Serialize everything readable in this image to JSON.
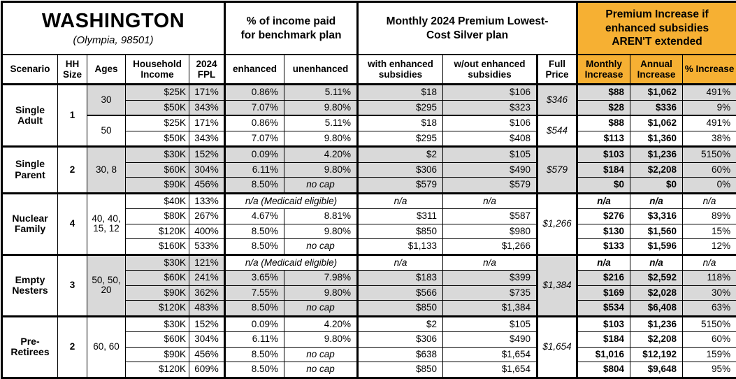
{
  "title": {
    "state": "WASHINGTON",
    "city": "(Olympia, 98501)"
  },
  "colors": {
    "highlight": "#F6B033",
    "shade": "#D9D9D9"
  },
  "column_groups": {
    "benchmark": "% of income paid for benchmark plan",
    "premium": "Monthly 2024 Premium Lowest-Cost Silver plan",
    "increase": "Premium Increase if enhanced subsidies AREN'T extended"
  },
  "headers": {
    "scenario": "Scenario",
    "hh_size": "HH Size",
    "ages": "Ages",
    "income": "Household Income",
    "fpl": "2024 FPL",
    "enhanced": "enhanced",
    "unenhanced": "unenhanced",
    "with_subsidies": "with enhanced subsidies",
    "without_subsidies": "w/out enhanced subsidies",
    "full_price": "Full Price",
    "monthly_increase": "Monthly Increase",
    "annual_increase": "Annual Increase",
    "pct_increase": "% Increase"
  },
  "sections": [
    {
      "scenario": "Single Adult",
      "hh_size": "1",
      "age_groups": [
        {
          "ages": "30",
          "shaded": true,
          "full_price": "$346",
          "rows": [
            {
              "income": "$25K",
              "fpl": "171%",
              "enhanced": "0.86%",
              "unenhanced": "5.11%",
              "with_sub": "$18",
              "without_sub": "$106",
              "monthly": "$88",
              "annual": "$1,062",
              "pct": "491%"
            },
            {
              "income": "$50K",
              "fpl": "343%",
              "enhanced": "7.07%",
              "unenhanced": "9.80%",
              "with_sub": "$295",
              "without_sub": "$323",
              "monthly": "$28",
              "annual": "$336",
              "pct": "9%"
            }
          ]
        },
        {
          "ages": "50",
          "shaded": false,
          "full_price": "$544",
          "rows": [
            {
              "income": "$25K",
              "fpl": "171%",
              "enhanced": "0.86%",
              "unenhanced": "5.11%",
              "with_sub": "$18",
              "without_sub": "$106",
              "monthly": "$88",
              "annual": "$1,062",
              "pct": "491%"
            },
            {
              "income": "$50K",
              "fpl": "343%",
              "enhanced": "7.07%",
              "unenhanced": "9.80%",
              "with_sub": "$295",
              "without_sub": "$408",
              "monthly": "$113",
              "annual": "$1,360",
              "pct": "38%"
            }
          ]
        }
      ]
    },
    {
      "scenario": "Single Parent",
      "hh_size": "2",
      "age_groups": [
        {
          "ages": "30, 8",
          "shaded": true,
          "full_price": "$579",
          "rows": [
            {
              "income": "$30K",
              "fpl": "152%",
              "enhanced": "0.09%",
              "unenhanced": "4.20%",
              "with_sub": "$2",
              "without_sub": "$105",
              "monthly": "$103",
              "annual": "$1,236",
              "pct": "5150%"
            },
            {
              "income": "$60K",
              "fpl": "304%",
              "enhanced": "6.11%",
              "unenhanced": "9.80%",
              "with_sub": "$306",
              "without_sub": "$490",
              "monthly": "$184",
              "annual": "$2,208",
              "pct": "60%"
            },
            {
              "income": "$90K",
              "fpl": "456%",
              "enhanced": "8.50%",
              "unenhanced": "no cap",
              "with_sub": "$579",
              "without_sub": "$579",
              "monthly": "$0",
              "annual": "$0",
              "pct": "0%"
            }
          ]
        }
      ]
    },
    {
      "scenario": "Nuclear Family",
      "hh_size": "4",
      "age_groups": [
        {
          "ages": "40, 40, 15, 12",
          "shaded": false,
          "full_price": "$1,266",
          "rows": [
            {
              "income": "$40K",
              "fpl": "133%",
              "medicaid": "n/a (Medicaid eligible)",
              "with_sub": "n/a",
              "without_sub": "n/a",
              "monthly": "n/a",
              "annual": "n/a",
              "pct": "n/a"
            },
            {
              "income": "$80K",
              "fpl": "267%",
              "enhanced": "4.67%",
              "unenhanced": "8.81%",
              "with_sub": "$311",
              "without_sub": "$587",
              "monthly": "$276",
              "annual": "$3,316",
              "pct": "89%"
            },
            {
              "income": "$120K",
              "fpl": "400%",
              "enhanced": "8.50%",
              "unenhanced": "9.80%",
              "with_sub": "$850",
              "without_sub": "$980",
              "monthly": "$130",
              "annual": "$1,560",
              "pct": "15%"
            },
            {
              "income": "$160K",
              "fpl": "533%",
              "enhanced": "8.50%",
              "unenhanced": "no cap",
              "with_sub": "$1,133",
              "without_sub": "$1,266",
              "monthly": "$133",
              "annual": "$1,596",
              "pct": "12%"
            }
          ]
        }
      ]
    },
    {
      "scenario": "Empty Nesters",
      "hh_size": "3",
      "age_groups": [
        {
          "ages": "50, 50, 20",
          "shaded": true,
          "full_price": "$1,384",
          "rows": [
            {
              "income": "$30K",
              "fpl": "121%",
              "medicaid": "n/a (Medicaid eligible)",
              "with_sub": "n/a",
              "without_sub": "n/a",
              "monthly": "n/a",
              "annual": "n/a",
              "pct": "n/a"
            },
            {
              "income": "$60K",
              "fpl": "241%",
              "enhanced": "3.65%",
              "unenhanced": "7.98%",
              "with_sub": "$183",
              "without_sub": "$399",
              "monthly": "$216",
              "annual": "$2,592",
              "pct": "118%"
            },
            {
              "income": "$90K",
              "fpl": "362%",
              "enhanced": "7.55%",
              "unenhanced": "9.80%",
              "with_sub": "$566",
              "without_sub": "$735",
              "monthly": "$169",
              "annual": "$2,028",
              "pct": "30%"
            },
            {
              "income": "$120K",
              "fpl": "483%",
              "enhanced": "8.50%",
              "unenhanced": "no cap",
              "with_sub": "$850",
              "without_sub": "$1,384",
              "monthly": "$534",
              "annual": "$6,408",
              "pct": "63%"
            }
          ]
        }
      ]
    },
    {
      "scenario": "Pre-Retirees",
      "hh_size": "2",
      "age_groups": [
        {
          "ages": "60, 60",
          "shaded": false,
          "full_price": "$1,654",
          "rows": [
            {
              "income": "$30K",
              "fpl": "152%",
              "enhanced": "0.09%",
              "unenhanced": "4.20%",
              "with_sub": "$2",
              "without_sub": "$105",
              "monthly": "$103",
              "annual": "$1,236",
              "pct": "5150%"
            },
            {
              "income": "$60K",
              "fpl": "304%",
              "enhanced": "6.11%",
              "unenhanced": "9.80%",
              "with_sub": "$306",
              "without_sub": "$490",
              "monthly": "$184",
              "annual": "$2,208",
              "pct": "60%"
            },
            {
              "income": "$90K",
              "fpl": "456%",
              "enhanced": "8.50%",
              "unenhanced": "no cap",
              "with_sub": "$638",
              "without_sub": "$1,654",
              "monthly": "$1,016",
              "annual": "$12,192",
              "pct": "159%"
            },
            {
              "income": "$120K",
              "fpl": "609%",
              "enhanced": "8.50%",
              "unenhanced": "no cap",
              "with_sub": "$850",
              "without_sub": "$1,654",
              "monthly": "$804",
              "annual": "$9,648",
              "pct": "95%"
            }
          ]
        }
      ]
    }
  ]
}
